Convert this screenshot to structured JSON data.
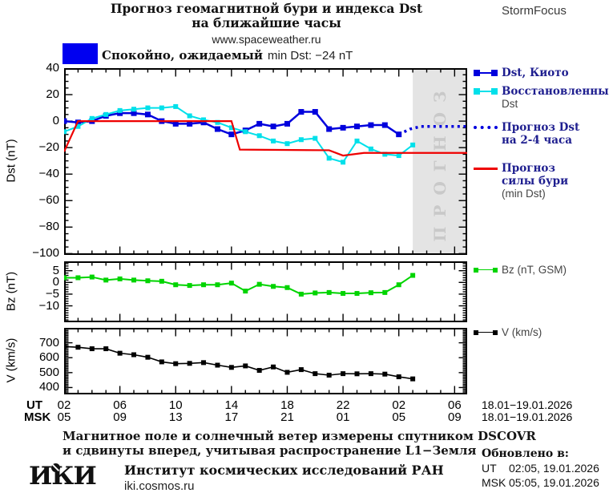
{
  "header": {
    "title_line1": "Прогноз геомагнитной бури и индекса Dst",
    "title_line2": "на ближайшие часы",
    "site_url": "www.spaceweather.ru",
    "brand": "StormFocus"
  },
  "status": {
    "level_color": "#0000f0",
    "text_cyr": "Спокойно, ожидаемый",
    "text_lat": "min Dst: −24 nT"
  },
  "legend": {
    "items": [
      {
        "line1": "Dst, Киото"
      },
      {
        "line1": "Восстановленный",
        "line2": "Dst"
      },
      {
        "line1": "Прогноз Dst",
        "line2": "на 2-4 часа"
      },
      {
        "line1": "Прогноз",
        "line2": "силы бури",
        "line3": "(min Dst)"
      },
      {
        "line1": "Bz (nT, GSM)"
      },
      {
        "line1": "V (km/s)"
      }
    ]
  },
  "axis": {
    "ut_label": "UT",
    "msk_label": "MSK",
    "tick_hours": [
      2,
      6,
      10,
      14,
      18,
      22,
      26,
      30
    ],
    "ut_hours": [
      "02",
      "06",
      "10",
      "14",
      "18",
      "22",
      "02",
      "06"
    ],
    "msk_hours": [
      "05",
      "09",
      "13",
      "17",
      "21",
      "01",
      "05",
      "09"
    ],
    "ut_date": "18.01−19.01.2026",
    "msk_date": "18.01−19.01.2026"
  },
  "footer": {
    "note_line1": "Магнитное поле и солнечный ветер измерены спутником DSCOVR",
    "note_line2": "и сдвинуты вперед, учитывая распространение L1−Земля",
    "logo": "ИКИ",
    "institute": "Институт космических исследований РАН",
    "institute_url": "iki.cosmos.ru",
    "updated_label": "Обновлено в:",
    "updated": [
      {
        "zone": "UT",
        "time": "02:05, 19.01.2026"
      },
      {
        "zone": "MSK",
        "time": "05:05, 19.01.2026"
      }
    ]
  },
  "chart_data": [
    {
      "id": "dst",
      "type": "line",
      "ylabel": "Dst (nT)",
      "ylim": [
        -101,
        40
      ],
      "yticks": [
        40,
        20,
        0,
        -20,
        -40,
        -60,
        -80,
        -100
      ],
      "yminor": 5,
      "xlim_hours": [
        2,
        30.9
      ],
      "grid": false,
      "legend_position": "right",
      "forecast_band": {
        "start_hour": 27,
        "fill": "#e4e4e4",
        "label": "ПРОГНОЗ"
      },
      "series": [
        {
          "name": "Dst, Киото",
          "color": "#0000dd",
          "width": 2.5,
          "marker": 7,
          "x": [
            2,
            3,
            4,
            5,
            6,
            7,
            8,
            9,
            10,
            11,
            12,
            13,
            14,
            15,
            16,
            17,
            18,
            19,
            20,
            21,
            22,
            23,
            24,
            25,
            26
          ],
          "y": [
            0,
            -1,
            0,
            4,
            6,
            6,
            5,
            0,
            -2,
            -2,
            -1,
            -6,
            -10,
            -7,
            -2,
            -4,
            -2,
            7,
            7,
            -6,
            -5,
            -4,
            -3,
            -3,
            -10
          ]
        },
        {
          "name": "Восстановленный Dst",
          "color": "#00e0ea",
          "width": 2,
          "marker": 6,
          "x": [
            2,
            3,
            4,
            5,
            6,
            7,
            8,
            9,
            10,
            11,
            12,
            13,
            14,
            15,
            16,
            17,
            18,
            19,
            20,
            21,
            22,
            23,
            24,
            25,
            26,
            27
          ],
          "y": [
            -8,
            -4,
            2,
            5,
            8,
            9,
            10,
            10,
            11,
            4,
            1,
            -1,
            -5,
            -8,
            -11,
            -15,
            -17,
            -14,
            -13,
            -28,
            -31,
            -15,
            -21,
            -25,
            -26,
            -18
          ]
        },
        {
          "name": "Прогноз Dst на 2-4 часа",
          "color": "#0000dd",
          "width": 3.5,
          "dash": true,
          "x": [
            26,
            26.8,
            27.6,
            30.9
          ],
          "y": [
            -10,
            -6,
            -4,
            -4
          ]
        },
        {
          "name": "Прогноз силы бури (min Dst)",
          "color": "#ee0000",
          "width": 2.2,
          "x": [
            2,
            3,
            14,
            14.6,
            21,
            22,
            23.5,
            30.9
          ],
          "y": [
            -23,
            0,
            0,
            -21.5,
            -22,
            -26,
            -24,
            -24
          ]
        }
      ]
    },
    {
      "id": "bz",
      "type": "line",
      "ylabel": "Bz (nT)",
      "ylim": [
        -17,
        9
      ],
      "yticks": [
        5,
        0,
        -5,
        -10
      ],
      "yminor": 1,
      "xlim_hours": [
        2,
        30.9
      ],
      "grid": false,
      "series": [
        {
          "name": "Bz (nT, GSM)",
          "color": "#00d400",
          "width": 2,
          "marker": 6,
          "x": [
            2,
            3,
            4,
            5,
            6,
            7,
            8,
            9,
            10,
            11,
            12,
            13,
            14,
            15,
            16,
            17,
            18,
            19,
            20,
            21,
            22,
            23,
            24,
            25,
            26,
            27
          ],
          "y": [
            2,
            2,
            2.3,
            1,
            1.5,
            1,
            0.7,
            0.5,
            -1,
            -1.3,
            -1,
            -1,
            -0.3,
            -3.7,
            -0.8,
            -1.7,
            -2.2,
            -5,
            -4.5,
            -4.3,
            -4.7,
            -4.7,
            -4.4,
            -4.3,
            -1,
            3
          ]
        }
      ]
    },
    {
      "id": "v",
      "type": "line",
      "ylabel": "V (km/s)",
      "ylim": [
        354,
        800
      ],
      "yticks": [
        700,
        600,
        500,
        400
      ],
      "yminor": 10,
      "xlim_hours": [
        2,
        30.9
      ],
      "grid": false,
      "series": [
        {
          "name": "V (km/s)",
          "color": "#000000",
          "width": 1.6,
          "marker": 6,
          "x": [
            2,
            3,
            4,
            5,
            6,
            7,
            8,
            9,
            10,
            11,
            12,
            13,
            14,
            15,
            16,
            17,
            18,
            19,
            20,
            21,
            22,
            23,
            24,
            25,
            26,
            27
          ],
          "y": [
            675,
            670,
            660,
            660,
            630,
            620,
            603,
            572,
            560,
            562,
            567,
            550,
            535,
            545,
            515,
            538,
            502,
            520,
            493,
            483,
            493,
            492,
            493,
            490,
            472,
            458
          ]
        }
      ]
    }
  ]
}
